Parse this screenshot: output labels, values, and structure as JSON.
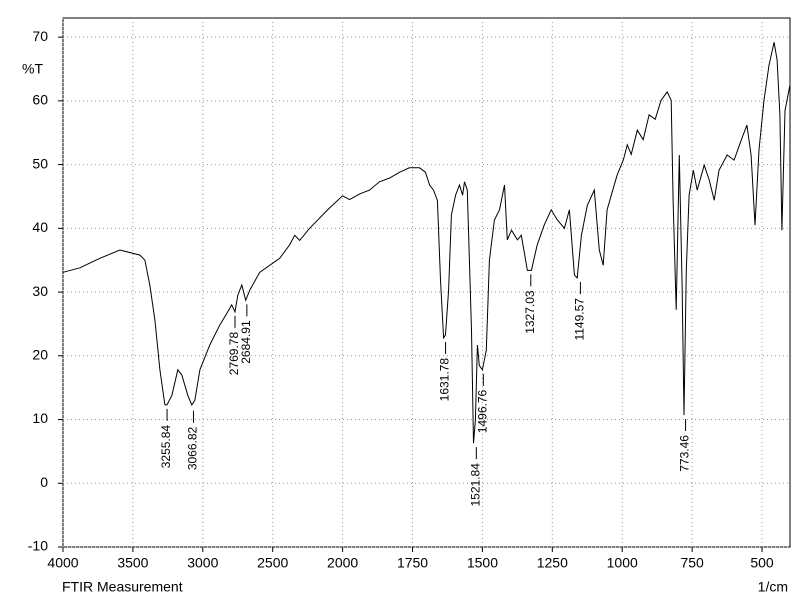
{
  "chart_data": {
    "type": "line",
    "title": "FTIR Measurement",
    "x_label": "1/cm",
    "y_label": "%T",
    "xlim": [
      4000,
      400
    ],
    "xticks": [
      4000,
      3500,
      3000,
      2500,
      2000,
      1750,
      1500,
      1250,
      1000,
      750,
      500
    ],
    "ylim": [
      -10,
      73
    ],
    "yticks": [
      -10,
      0,
      10,
      20,
      30,
      40,
      50,
      60,
      70
    ],
    "grid": true,
    "color": "#000000",
    "x": [
      4000,
      3879,
      3736,
      3593,
      3450,
      3414,
      3379,
      3343,
      3307,
      3271,
      3256,
      3221,
      3179,
      3150,
      3107,
      3079,
      3057,
      3021,
      2950,
      2879,
      2821,
      2793,
      2770,
      2750,
      2721,
      2693,
      2664,
      2593,
      2450,
      2379,
      2343,
      2307,
      2236,
      2093,
      2000,
      1975,
      1939,
      1904,
      1868,
      1832,
      1796,
      1761,
      1725,
      1704,
      1689,
      1675,
      1661,
      1650,
      1639,
      1632,
      1621,
      1611,
      1596,
      1582,
      1571,
      1564,
      1554,
      1539,
      1532,
      1525,
      1518,
      1511,
      1500,
      1486,
      1475,
      1457,
      1439,
      1421,
      1411,
      1396,
      1375,
      1361,
      1339,
      1325,
      1304,
      1279,
      1254,
      1232,
      1207,
      1189,
      1171,
      1161,
      1146,
      1125,
      1100,
      1082,
      1068,
      1054,
      1039,
      1018,
      996,
      982,
      968,
      946,
      925,
      904,
      882,
      861,
      839,
      825,
      818,
      807,
      796,
      786,
      779,
      771,
      761,
      746,
      732,
      707,
      689,
      671,
      654,
      625,
      600,
      575,
      554,
      539,
      525,
      511,
      493,
      475,
      457,
      446,
      436,
      429,
      418,
      400
    ],
    "values": [
      33.1,
      33.8,
      35.3,
      36.6,
      35.8,
      35.0,
      31.1,
      25.6,
      17.8,
      12.3,
      12.3,
      13.8,
      17.8,
      17.0,
      13.8,
      12.3,
      13.0,
      17.8,
      21.7,
      24.8,
      26.9,
      28.0,
      26.9,
      29.5,
      31.1,
      28.7,
      30.3,
      33.1,
      35.3,
      37.4,
      38.9,
      38.1,
      40.0,
      43.2,
      45.1,
      44.5,
      45.4,
      46.0,
      47.3,
      47.9,
      48.8,
      49.5,
      49.5,
      48.8,
      46.8,
      46.0,
      44.4,
      31.9,
      22.8,
      23.3,
      30.3,
      42.1,
      45.2,
      46.8,
      45.2,
      47.3,
      46.0,
      24.0,
      6.3,
      9.9,
      21.7,
      18.5,
      17.8,
      20.9,
      35.0,
      41.3,
      42.9,
      46.8,
      38.2,
      39.7,
      38.2,
      38.9,
      33.4,
      33.4,
      37.4,
      40.5,
      42.9,
      41.3,
      40.0,
      42.9,
      32.7,
      32.2,
      38.9,
      43.6,
      46.0,
      36.6,
      34.2,
      42.9,
      45.2,
      48.4,
      50.7,
      53.1,
      51.6,
      55.4,
      53.9,
      57.8,
      57.1,
      60.1,
      61.4,
      60.1,
      44.4,
      27.2,
      51.5,
      31.1,
      10.7,
      33.5,
      45.2,
      49.1,
      46.0,
      49.9,
      47.6,
      44.4,
      49.1,
      51.5,
      50.7,
      53.8,
      56.2,
      51.5,
      40.5,
      52.3,
      60.1,
      65.6,
      69.2,
      66.4,
      57.8,
      39.7,
      58.5,
      62.5
    ],
    "peaks": [
      {
        "x": 3255.84,
        "y": 12.3
      },
      {
        "x": 3066.82,
        "y": 12.0
      },
      {
        "x": 2769.78,
        "y": 26.9
      },
      {
        "x": 2684.91,
        "y": 28.7
      },
      {
        "x": 1631.78,
        "y": 22.8
      },
      {
        "x": 1521.84,
        "y": 6.3
      },
      {
        "x": 1496.76,
        "y": 17.8
      },
      {
        "x": 1327.03,
        "y": 33.4
      },
      {
        "x": 1149.57,
        "y": 32.2
      },
      {
        "x": 773.46,
        "y": 10.7
      }
    ]
  }
}
